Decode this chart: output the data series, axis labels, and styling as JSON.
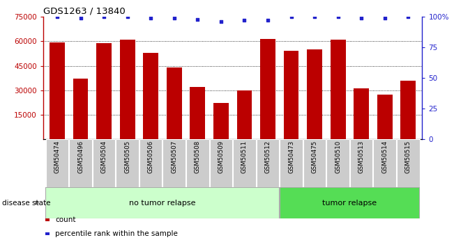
{
  "title": "GDS1263 / 13840",
  "samples": [
    "GSM50474",
    "GSM50496",
    "GSM50504",
    "GSM50505",
    "GSM50506",
    "GSM50507",
    "GSM50508",
    "GSM50509",
    "GSM50511",
    "GSM50512",
    "GSM50473",
    "GSM50475",
    "GSM50510",
    "GSM50513",
    "GSM50514",
    "GSM50515"
  ],
  "counts": [
    59500,
    37000,
    59000,
    61000,
    53000,
    44000,
    32000,
    22000,
    30000,
    61500,
    54000,
    55000,
    61000,
    31000,
    27500,
    36000
  ],
  "percentiles": [
    100,
    99,
    100,
    100,
    99,
    99,
    98,
    96,
    97,
    97,
    100,
    100,
    100,
    99,
    99,
    100
  ],
  "group_labels": [
    "no tumor relapse",
    "tumor relapse"
  ],
  "group_counts": [
    10,
    6
  ],
  "ylim_left": [
    0,
    75000
  ],
  "ylim_right": [
    0,
    100
  ],
  "yticks_left": [
    15000,
    30000,
    45000,
    60000,
    75000
  ],
  "yticks_right": [
    0,
    25,
    50,
    75,
    100
  ],
  "bar_color": "#bb0000",
  "dot_color": "#2222cc",
  "group1_color": "#ccffcc",
  "group2_color": "#55dd55",
  "xticklabel_bg": "#cccccc",
  "legend_count_label": "count",
  "legend_percentile_label": "percentile rank within the sample",
  "disease_state_label": "disease state"
}
